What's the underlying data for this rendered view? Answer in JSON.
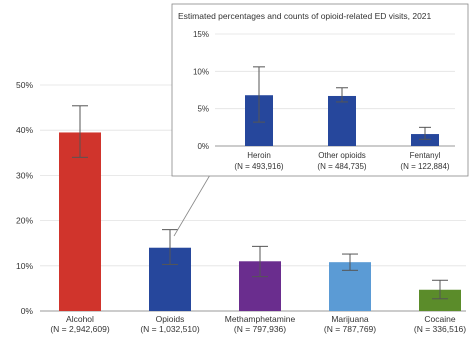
{
  "chart_data": [
    {
      "type": "bar",
      "categories": [
        "Alcohol",
        "Opioids",
        "Methamphetamine",
        "Marijuana",
        "Cocaine"
      ],
      "sublabels": [
        "(N = 2,942,609)",
        "(N = 1,032,510)",
        "(N = 797,936)",
        "(N = 787,769)",
        "(N = 336,516)"
      ],
      "values": [
        39.5,
        14.0,
        11.0,
        10.8,
        4.7
      ],
      "err_low": [
        34.0,
        10.3,
        7.6,
        9.0,
        2.7
      ],
      "err_high": [
        45.4,
        18.0,
        14.3,
        12.6,
        6.8
      ],
      "colors": [
        "#d0342c",
        "#26479c",
        "#6a2d8e",
        "#5b9bd5",
        "#5b8c2a"
      ],
      "ylim": [
        0,
        50
      ],
      "yticks": [
        0,
        10,
        20,
        30,
        40,
        50
      ],
      "ytick_labels": [
        "0%",
        "10%",
        "20%",
        "30%",
        "40%",
        "50%"
      ],
      "title": "",
      "xlabel": "",
      "ylabel": ""
    },
    {
      "type": "bar",
      "title": "Estimated percentages and counts of opioid-related ED visits, 2021",
      "categories": [
        "Heroin",
        "Other opioids",
        "Fentanyl"
      ],
      "sublabels": [
        "(N = 493,916)",
        "(N = 484,735)",
        "(N = 122,884)"
      ],
      "values": [
        6.8,
        6.7,
        1.6
      ],
      "err_low": [
        3.2,
        5.9,
        0.9
      ],
      "err_high": [
        10.6,
        7.8,
        2.5
      ],
      "colors": [
        "#26479c",
        "#26479c",
        "#26479c"
      ],
      "ylim": [
        0,
        15
      ],
      "yticks": [
        0,
        5,
        10,
        15
      ],
      "ytick_labels": [
        "0%",
        "5%",
        "10%",
        "15%"
      ],
      "xlabel": "",
      "ylabel": ""
    }
  ]
}
